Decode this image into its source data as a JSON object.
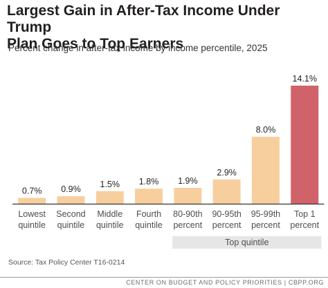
{
  "title_line1": "Largest Gain in After-Tax Income Under Trump",
  "title_line2": "Plan Goes to Top Earners",
  "subtitle": "Percent change in after-tax income by income percentile, 2025",
  "source": "Source: Tax Policy Center T16-0214",
  "footer": "CENTER ON BUDGET AND POLICY PRIORITIES | CBPP.ORG",
  "colors": {
    "bar": "#f7cf9f",
    "highlight_bar": "#d0636a",
    "bracket": "#e6e6e6",
    "axis": "#333333"
  },
  "chart_data": {
    "type": "bar",
    "categories": [
      [
        "Lowest",
        "quintile"
      ],
      [
        "Second",
        "quintile"
      ],
      [
        "Middle",
        "quintile"
      ],
      [
        "Fourth",
        "quintile"
      ],
      [
        "80-90th",
        "percent"
      ],
      [
        "90-95th",
        "percent"
      ],
      [
        "95-99th",
        "percent"
      ],
      [
        "Top 1",
        "percent"
      ]
    ],
    "values": [
      0.7,
      0.9,
      1.5,
      1.8,
      1.9,
      2.9,
      8.0,
      14.1
    ],
    "data_labels": [
      "0.7%",
      "0.9%",
      "1.5%",
      "1.8%",
      "1.9%",
      "2.9%",
      "8.0%",
      "14.1%"
    ],
    "highlight_index": 7,
    "ylim": [
      0,
      14.1
    ],
    "grid": false,
    "group_label": {
      "text": "Top quintile",
      "from_index": 4,
      "to_index": 7
    }
  }
}
